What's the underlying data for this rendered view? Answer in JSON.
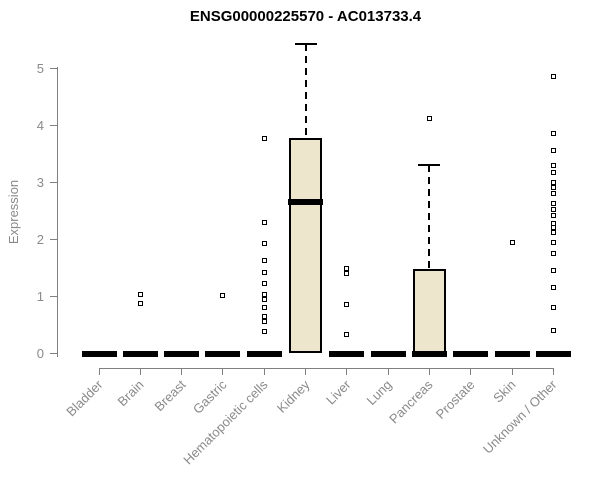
{
  "chart_data": {
    "type": "boxplot",
    "title": "ENSG00000225570 - AC013733.4",
    "ylabel": "Expression",
    "xlabel": "",
    "ylim": [
      0,
      5.5
    ],
    "yticks": [
      0,
      1,
      2,
      3,
      4,
      5
    ],
    "grid": false,
    "legend": null,
    "categories": [
      "Bladder",
      "Brain",
      "Breast",
      "Gastric",
      "Hematopoietic cells",
      "Kidney",
      "Liver",
      "Lung",
      "Pancreas",
      "Prostate",
      "Skin",
      "Unknown / Other"
    ],
    "boxes": [
      {
        "category": "Bladder",
        "q1": 0,
        "median": 0,
        "q3": 0,
        "whisker_low": 0,
        "whisker_high": 0,
        "outliers": []
      },
      {
        "category": "Brain",
        "q1": 0,
        "median": 0,
        "q3": 0,
        "whisker_low": 0,
        "whisker_high": 0,
        "outliers": [
          1.03,
          0.88
        ]
      },
      {
        "category": "Breast",
        "q1": 0,
        "median": 0,
        "q3": 0,
        "whisker_low": 0,
        "whisker_high": 0,
        "outliers": []
      },
      {
        "category": "Gastric",
        "q1": 0,
        "median": 0,
        "q3": 0,
        "whisker_low": 0,
        "whisker_high": 0,
        "outliers": [
          1.02
        ]
      },
      {
        "category": "Hematopoietic cells",
        "q1": 0,
        "median": 0,
        "q3": 0,
        "whisker_low": 0,
        "whisker_high": 0,
        "outliers": [
          3.77,
          2.3,
          1.92,
          1.62,
          1.42,
          1.23,
          1.03,
          0.95,
          0.8,
          0.64,
          0.56,
          0.38
        ]
      },
      {
        "category": "Kidney",
        "q1": 0,
        "median": 2.66,
        "q3": 3.78,
        "whisker_low": 0,
        "whisker_high": 5.42,
        "outliers": []
      },
      {
        "category": "Liver",
        "q1": 0,
        "median": 0,
        "q3": 0,
        "whisker_low": 0,
        "whisker_high": 0,
        "outliers": [
          1.48,
          1.4,
          0.85,
          0.33
        ]
      },
      {
        "category": "Lung",
        "q1": 0,
        "median": 0,
        "q3": 0,
        "whisker_low": 0,
        "whisker_high": 0,
        "outliers": []
      },
      {
        "category": "Pancreas",
        "q1": 0,
        "median": 0,
        "q3": 1.48,
        "whisker_low": 0,
        "whisker_high": 3.3,
        "outliers": [
          4.12
        ]
      },
      {
        "category": "Prostate",
        "q1": 0,
        "median": 0,
        "q3": 0,
        "whisker_low": 0,
        "whisker_high": 0,
        "outliers": []
      },
      {
        "category": "Skin",
        "q1": 0,
        "median": 0,
        "q3": 0,
        "whisker_low": 0,
        "whisker_high": 0,
        "outliers": [
          1.95
        ]
      },
      {
        "category": "Unknown / Other",
        "q1": 0,
        "median": 0,
        "q3": 0,
        "whisker_low": 0,
        "whisker_high": 0,
        "outliers": [
          4.85,
          3.85,
          3.55,
          3.3,
          3.17,
          3.0,
          2.9,
          2.8,
          2.63,
          2.52,
          2.42,
          2.28,
          2.2,
          2.12,
          1.95,
          1.75,
          1.45,
          1.15,
          0.8,
          0.4
        ]
      }
    ],
    "colors": {
      "box_fill": "#EDE6CC",
      "box_border": "#000000",
      "median": "#000000",
      "axis": "#808080",
      "tick_label": "#8a8a8a",
      "title": "#000000",
      "background": "#ffffff"
    }
  }
}
